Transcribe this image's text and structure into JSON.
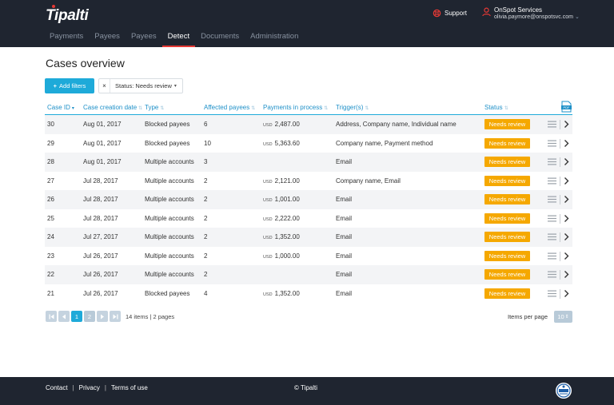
{
  "header": {
    "logo": "Tipalti",
    "support": "Support",
    "user_name": "OnSpot Services",
    "user_email": "olivia.paymore@onspotsvc.com"
  },
  "nav": [
    "Payments",
    "Payees",
    "Payees",
    "Detect",
    "Documents",
    "Administration"
  ],
  "page_title": "Cases overview",
  "filters": {
    "add_label": "Add filters",
    "chip_label": "Status: Needs review"
  },
  "table": {
    "headers": [
      "Case ID",
      "Case creation date",
      "Type",
      "Affected payees",
      "Payments in process",
      "Trigger(s)",
      "Status"
    ],
    "currency": "USD",
    "rows": [
      {
        "id": "30",
        "date": "Aug 01, 2017",
        "type": "Blocked payees",
        "affected": "6",
        "amount": "2,487.00",
        "trigger": "Address, Company name, Individual name",
        "status": "Needs review"
      },
      {
        "id": "29",
        "date": "Aug 01, 2017",
        "type": "Blocked payees",
        "affected": "10",
        "amount": "5,363.60",
        "trigger": "Company name, Payment method",
        "status": "Needs review"
      },
      {
        "id": "28",
        "date": "Aug 01, 2017",
        "type": "Multiple accounts",
        "affected": "3",
        "amount": "",
        "trigger": "Email",
        "status": "Needs review"
      },
      {
        "id": "27",
        "date": "Jul 28, 2017",
        "type": "Multiple accounts",
        "affected": "2",
        "amount": "2,121.00",
        "trigger": "Company name, Email",
        "status": "Needs review"
      },
      {
        "id": "26",
        "date": "Jul 28, 2017",
        "type": "Multiple accounts",
        "affected": "2",
        "amount": "1,001.00",
        "trigger": "Email",
        "status": "Needs review"
      },
      {
        "id": "25",
        "date": "Jul 28, 2017",
        "type": "Multiple accounts",
        "affected": "2",
        "amount": "2,222.00",
        "trigger": "Email",
        "status": "Needs review"
      },
      {
        "id": "24",
        "date": "Jul 27, 2017",
        "type": "Multiple accounts",
        "affected": "2",
        "amount": "1,352.00",
        "trigger": "Email",
        "status": "Needs review"
      },
      {
        "id": "23",
        "date": "Jul 26, 2017",
        "type": "Multiple accounts",
        "affected": "2",
        "amount": "1,000.00",
        "trigger": "Email",
        "status": "Needs review"
      },
      {
        "id": "22",
        "date": "Jul 26, 2017",
        "type": "Multiple accounts",
        "affected": "2",
        "amount": "",
        "trigger": "Email",
        "status": "Needs review"
      },
      {
        "id": "21",
        "date": "Jul 26, 2017",
        "type": "Blocked payees",
        "affected": "4",
        "amount": "1,352.00",
        "trigger": "Email",
        "status": "Needs review"
      }
    ]
  },
  "pagination": {
    "pages": [
      "1",
      "2"
    ],
    "info": "14 items | 2 pages",
    "items_per_page_label": "Items per page",
    "items_per_page_value": "10"
  },
  "footer": {
    "links": [
      "Contact",
      "Privacy",
      "Terms of use"
    ],
    "copyright": "© Tipalti"
  },
  "colors": {
    "header_bg": "#1f2530",
    "accent": "#1eaad9",
    "status_badge": "#f5a800",
    "nav_active_underline": "#e53935"
  }
}
